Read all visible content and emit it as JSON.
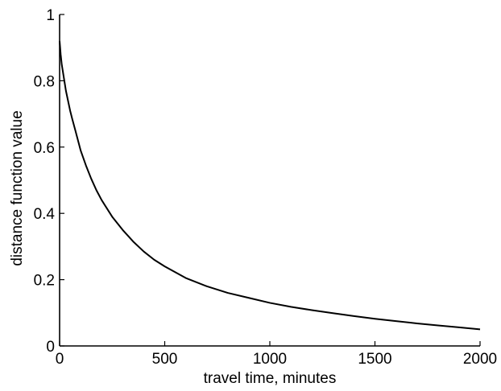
{
  "chart_data": {
    "type": "line",
    "title": "",
    "xlabel": "travel time, minutes",
    "ylabel": "distance function value",
    "xlim": [
      0,
      2000
    ],
    "ylim": [
      0,
      1
    ],
    "xticks": [
      0,
      500,
      1000,
      1500,
      2000
    ],
    "xtick_labels": [
      "0",
      "500",
      "1000",
      "1500",
      "2000"
    ],
    "yticks": [
      0,
      0.2,
      0.4,
      0.6,
      0.8,
      1
    ],
    "ytick_labels": [
      "0",
      "0.2",
      "0.4",
      "0.6",
      "0.8",
      "1"
    ],
    "grid": false,
    "legend": "none",
    "line_color": "#000000",
    "series": [
      {
        "x": [
          0,
          5,
          10,
          20,
          30,
          40,
          50,
          60,
          75,
          100,
          125,
          150,
          175,
          200,
          250,
          300,
          350,
          400,
          450,
          500,
          600,
          700,
          800,
          900,
          1000,
          1100,
          1200,
          1300,
          1400,
          1500,
          1600,
          1700,
          1800,
          1900,
          2000
        ],
        "values": [
          0.92,
          0.88,
          0.85,
          0.81,
          0.77,
          0.74,
          0.71,
          0.685,
          0.65,
          0.59,
          0.545,
          0.505,
          0.47,
          0.44,
          0.39,
          0.35,
          0.315,
          0.285,
          0.26,
          0.24,
          0.205,
          0.18,
          0.16,
          0.145,
          0.13,
          0.118,
          0.108,
          0.099,
          0.09,
          0.082,
          0.075,
          0.068,
          0.062,
          0.056,
          0.05
        ]
      }
    ]
  }
}
